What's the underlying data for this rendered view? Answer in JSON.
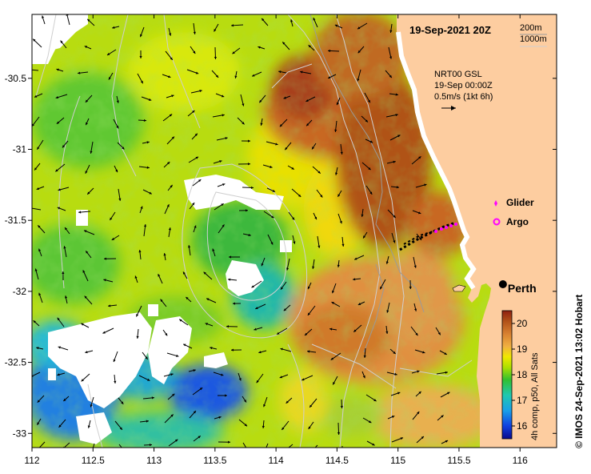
{
  "title": "19-Sep-2021 20Z",
  "depth_legend": [
    "200m",
    "1000m"
  ],
  "current_info": {
    "line1": "NRT00 GSL",
    "line2": "19-Sep 00:00Z",
    "line3": "0.5m/s (1kt 6h)"
  },
  "legend": {
    "glider": "Glider",
    "argo": "Argo",
    "glider_color": "#ff00ff",
    "argo_color": "#ff00ff"
  },
  "city": {
    "name": "Perth",
    "lon": 115.86,
    "lat": -31.95
  },
  "colorbar": {
    "label": "4h comp, p50, All Sats",
    "ticks": [
      16,
      17,
      18,
      19,
      20
    ],
    "min": 15.5,
    "max": 20.5
  },
  "credit": "© IMOS 24-Sep-2021 13:02 Hobart",
  "axes": {
    "x_ticks": [
      112,
      112.5,
      113,
      113.5,
      114,
      114.5,
      115,
      115.5,
      116
    ],
    "x_tick_labels": [
      "112",
      "112.5",
      "113",
      "113.5",
      "114",
      "114.5",
      "115",
      "115.5",
      "116"
    ],
    "y_ticks": [
      -30.5,
      -31,
      -31.5,
      -32,
      -32.5,
      -33
    ],
    "y_tick_labels": [
      "-30.5",
      "-31",
      "-31.5",
      "-32",
      "-32.5",
      "-33"
    ],
    "lon_range": [
      112,
      116.3
    ],
    "lat_range": [
      -33.1,
      -30.05
    ]
  },
  "colors": {
    "land": "#fdcda0",
    "ocean_warm": "#b35a1a",
    "ocean_cool": "#1a5fd6",
    "contour": "#c8c8c8"
  }
}
